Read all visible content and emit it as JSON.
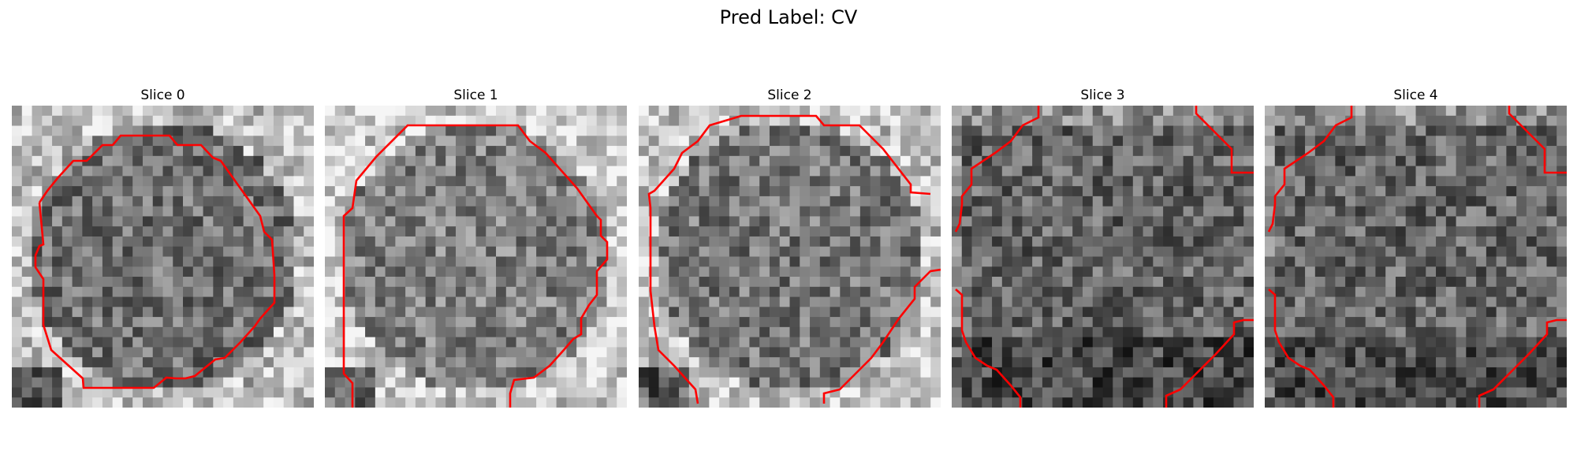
{
  "figure": {
    "title": "Pred Label: CV",
    "contour_color": "#ff0000"
  },
  "panels": [
    {
      "title": "Slice 0",
      "seed": 11,
      "base": 112,
      "edge": "bright-bottom"
    },
    {
      "title": "Slice 1",
      "seed": 23,
      "base": 128,
      "edge": "bright-bottom"
    },
    {
      "title": "Slice 2",
      "seed": 37,
      "base": 118,
      "edge": "bright-bottom"
    },
    {
      "title": "Slice 3",
      "seed": 51,
      "base": 100,
      "edge": "dark-bottom"
    },
    {
      "title": "Slice 4",
      "seed": 67,
      "base": 102,
      "edge": "dark-bottom"
    }
  ]
}
